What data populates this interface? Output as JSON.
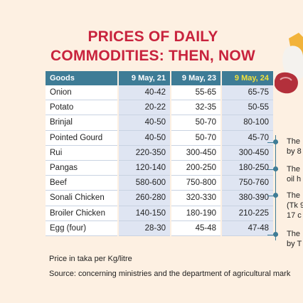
{
  "title_line1": "PRICES OF DAILY",
  "title_line2": "COMMODITIES: THEN, NOW",
  "chart_data": {
    "type": "table",
    "columns": [
      "Goods",
      "9 May, 21",
      "9 May, 23",
      "9 May, 24"
    ],
    "rows": [
      [
        "Onion",
        "40-42",
        "55-65",
        "65-75"
      ],
      [
        "Potato",
        "20-22",
        "32-35",
        "50-55"
      ],
      [
        "Brinjal",
        "40-50",
        "50-70",
        "80-100"
      ],
      [
        "Pointed Gourd",
        "40-50",
        "50-70",
        "45-70"
      ],
      [
        "Rui",
        "220-350",
        "300-450",
        "300-450"
      ],
      [
        "Pangas",
        "120-140",
        "200-250",
        "180-250"
      ],
      [
        "Beef",
        "580-600",
        "750-800",
        "750-760"
      ],
      [
        "Sonali Chicken",
        "260-280",
        "320-330",
        "380-390"
      ],
      [
        "Broiler Chicken",
        "140-150",
        "180-190",
        "210-225"
      ],
      [
        "Egg (four)",
        "28-30",
        "45-48",
        "47-48"
      ]
    ],
    "highlight_column": "9 May, 24",
    "highlight_color": "#f3e23a",
    "header_color": "#3e7c96"
  },
  "footnote": "Price in taka per Kg/litre",
  "source": "Source: concerning ministries and the department of agricultural mark",
  "side_notes": [
    "The\nby 8",
    "The\noil h",
    "The\n(Tk 9\n17 c",
    "The\nby T"
  ]
}
